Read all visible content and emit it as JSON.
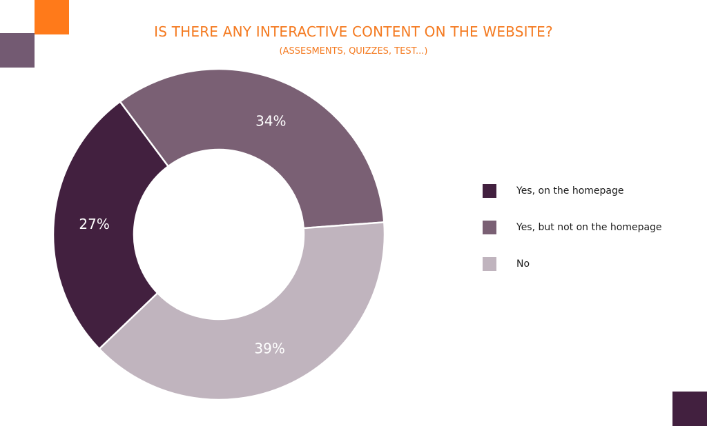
{
  "chart_data": {
    "type": "pie",
    "variant": "donut",
    "title": "IS THERE ANY INTERACTIVE CONTENT ON THE WEBSITE?",
    "subtitle": "(ASSESMENTS, QUIZZES, TEST...)",
    "categories": [
      "Yes, on the homepage",
      "Yes, but not on the homepage",
      "No"
    ],
    "values": [
      27,
      34,
      39
    ],
    "data_labels": [
      "27%",
      "34%",
      "39%"
    ],
    "colors": [
      "#42203F",
      "#7A6074",
      "#C0B4BE"
    ],
    "legend_position": "right"
  },
  "colors": {
    "title": "#F47A20",
    "deco_orange": "#FF7A1A",
    "deco_mauve": "#735A72",
    "deco_plum": "#42203F",
    "data_label": "#ffffff"
  }
}
